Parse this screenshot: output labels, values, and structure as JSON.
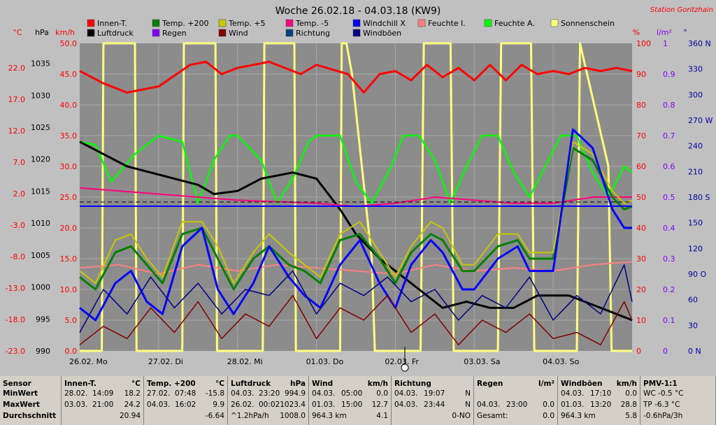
{
  "title": "Woche 26.02.18 - 04.03.18 (KW9)",
  "station": "Station Goritzhain",
  "axis_units": {
    "celsius": "°C",
    "hpa": "hPa",
    "kmh": "km/h",
    "percent": "%",
    "lm2": "l/m²",
    "deg": "°"
  },
  "colors": {
    "plot_bg": "#8c8c8c",
    "grid": "#a8a8a8",
    "red_axis": "#ff0000",
    "purple_axis": "#8000ff",
    "blue_axis": "#0000a0"
  },
  "legend": [
    {
      "label": "Innen-T.",
      "color": "#ff0000"
    },
    {
      "label": "Temp. +200",
      "color": "#008000"
    },
    {
      "label": "Temp. +5",
      "color": "#c8c800"
    },
    {
      "label": "Temp. -5",
      "color": "#ff0080"
    },
    {
      "label": "Windchill X",
      "color": "#0000ff"
    },
    {
      "label": "Feuchte I.",
      "color": "#ff8080"
    },
    {
      "label": "Feuchte A.",
      "color": "#00ff00"
    },
    {
      "label": "Sonnenschein",
      "color": "#ffff80"
    },
    {
      "label": "Luftdruck",
      "color": "#000000"
    },
    {
      "label": "Regen",
      "color": "#8000ff"
    },
    {
      "label": "Wind",
      "color": "#800000"
    },
    {
      "label": "Richtung",
      "color": "#004080"
    },
    {
      "label": "Windböen",
      "color": "#000080"
    }
  ],
  "chart_data": {
    "type": "line",
    "title": "Woche 26.02.18 - 04.03.18 (KW9)",
    "x_ticks": [
      "26.02. Mo",
      "27.02. Di",
      "28.02. Mi",
      "01.03. Do",
      "02.03. Fr",
      "03.03. Sa",
      "04.03. So"
    ],
    "axes": {
      "celsius": {
        "ticks": [
          "22.0",
          "17.0",
          "12.0",
          "7.0",
          "2.0",
          "-3.0",
          "-8.0",
          "-13.0",
          "-18.0",
          "-23.0"
        ],
        "range": [
          -23,
          27
        ]
      },
      "hpa": {
        "ticks": [
          "1035",
          "1030",
          "1025",
          "1020",
          "1015",
          "1010",
          "1005",
          "1000",
          "995",
          "990"
        ],
        "range": [
          990,
          1040
        ]
      },
      "kmh": {
        "ticks": [
          "50.0",
          "45.0",
          "40.0",
          "35.0",
          "30.0",
          "25.0",
          "20.0",
          "15.0",
          "10.0",
          "5.0",
          "0.0"
        ],
        "range": [
          0,
          50
        ]
      },
      "percent": {
        "ticks": [
          "100",
          "90",
          "80",
          "70",
          "60",
          "50",
          "40",
          "30",
          "20",
          "10",
          "0"
        ],
        "range": [
          0,
          100
        ]
      },
      "lm2": {
        "ticks": [
          "1",
          "0.9",
          "0.8",
          "0.7",
          "0.6",
          "0.5",
          "0.4",
          "0.3",
          "0.2",
          "0.1",
          "0"
        ],
        "range": [
          0,
          1
        ]
      },
      "deg": {
        "ticks": [
          "360 N",
          "330",
          "300",
          "270 W",
          "240",
          "210",
          "180 S",
          "150",
          "120",
          "90 O",
          "60",
          "30",
          "0 N"
        ],
        "range": [
          0,
          360
        ]
      }
    },
    "series": [
      {
        "name": "Sonnenschein",
        "axis": "percent",
        "x": [
          0,
          0.28,
          0.3,
          0.7,
          0.72,
          1,
          1.02,
          1.3,
          1.32,
          1.72,
          1.74,
          2,
          2.02,
          2.32,
          2.34,
          2.72,
          2.74,
          3,
          3.02,
          3.3,
          3.32,
          3.38,
          3.45,
          3.7,
          3.74,
          4,
          4.02,
          4.32,
          4.36,
          4.7,
          4.74,
          5,
          5.02,
          5.3,
          5.34,
          5.72,
          5.76,
          6,
          6.02,
          6.3,
          6.34,
          6.7,
          6.74,
          7
        ],
        "y": [
          0,
          0,
          100,
          100,
          0,
          0,
          0,
          0,
          100,
          100,
          0,
          0,
          0,
          0,
          100,
          100,
          0,
          0,
          0,
          0,
          100,
          100,
          90,
          30,
          0,
          0,
          0,
          0,
          100,
          100,
          0,
          0,
          0,
          0,
          100,
          100,
          0,
          0,
          0,
          0,
          100,
          60,
          0,
          0
        ]
      },
      {
        "name": "Feuchte A.",
        "axis": "percent",
        "x": [
          0,
          0.2,
          0.4,
          0.7,
          1.0,
          1.3,
          1.5,
          1.7,
          1.9,
          2.0,
          2.3,
          2.5,
          2.7,
          2.9,
          3.0,
          3.3,
          3.5,
          3.7,
          3.95,
          4.1,
          4.3,
          4.5,
          4.7,
          4.9,
          5.1,
          5.3,
          5.5,
          5.7,
          5.9,
          6.1,
          6.3,
          6.5,
          6.7,
          6.9,
          7.0
        ],
        "y": [
          68,
          67,
          55,
          64,
          70,
          68,
          48,
          62,
          70,
          70,
          62,
          48,
          56,
          68,
          70,
          70,
          55,
          48,
          60,
          70,
          70,
          62,
          48,
          60,
          70,
          70,
          58,
          50,
          60,
          70,
          70,
          58,
          50,
          60,
          58
        ]
      },
      {
        "name": "Innen-T.",
        "axis": "celsius",
        "x": [
          0,
          0.3,
          0.6,
          1.0,
          1.4,
          1.6,
          1.8,
          2.0,
          2.4,
          2.8,
          3.0,
          3.4,
          3.6,
          3.8,
          4.0,
          4.2,
          4.4,
          4.6,
          4.8,
          5.0,
          5.2,
          5.4,
          5.6,
          5.8,
          6.0,
          6.2,
          6.4,
          6.6,
          6.8,
          7.0
        ],
        "y": [
          22.5,
          20.5,
          19.0,
          20.0,
          23.5,
          24.0,
          22.0,
          23.0,
          24.0,
          22.0,
          23.5,
          22.0,
          19.0,
          22.0,
          22.5,
          21.0,
          23.5,
          21.5,
          23.0,
          21.0,
          23.5,
          21.0,
          23.5,
          22.0,
          22.5,
          22.0,
          23.0,
          22.5,
          23.0,
          22.5
        ]
      },
      {
        "name": "Luftdruck",
        "axis": "hpa",
        "x": [
          0,
          0.3,
          0.6,
          0.9,
          1.2,
          1.5,
          1.7,
          2.0,
          2.3,
          2.7,
          3.0,
          3.3,
          3.5,
          3.8,
          4.0,
          4.3,
          4.6,
          4.9,
          5.2,
          5.5,
          5.8,
          6.0,
          6.2,
          6.4,
          6.6,
          6.8,
          7.0
        ],
        "y": [
          1024,
          1022,
          1020,
          1019,
          1018,
          1017,
          1015.5,
          1016,
          1018,
          1019,
          1018,
          1013,
          1009,
          1005,
          1003,
          1000,
          997,
          998,
          997,
          997,
          999,
          999,
          999,
          998,
          997,
          996,
          995
        ]
      },
      {
        "name": "Temp. -5",
        "axis": "celsius",
        "x": [
          0,
          1,
          2,
          3,
          3.5,
          4,
          4.5,
          5,
          5.5,
          6,
          6.5,
          7
        ],
        "y": [
          3.5,
          2.5,
          1.5,
          1.0,
          0.5,
          1.0,
          2.0,
          1.5,
          1.0,
          1.0,
          2.0,
          2.0
        ]
      },
      {
        "name": "Feuchte I.",
        "axis": "percent",
        "x": [
          0,
          0.5,
          1,
          1.5,
          2,
          2.5,
          3,
          3.5,
          4,
          4.5,
          5,
          5.5,
          6,
          6.5,
          7
        ],
        "y": [
          27,
          28,
          25,
          28,
          26,
          28,
          27,
          26,
          25,
          28,
          26,
          27,
          26,
          28,
          29
        ]
      },
      {
        "name": "Temp. +200",
        "axis": "celsius",
        "x": [
          0,
          0.2,
          0.45,
          0.65,
          0.85,
          1.05,
          1.3,
          1.55,
          1.75,
          1.95,
          2.2,
          2.4,
          2.65,
          2.85,
          3.05,
          3.3,
          3.55,
          3.8,
          4.0,
          4.2,
          4.45,
          4.6,
          4.85,
          5.0,
          5.3,
          5.55,
          5.7,
          6.0,
          6.25,
          6.5,
          6.75,
          6.9,
          7.0
        ],
        "y": [
          -11,
          -13,
          -7,
          -6,
          -9,
          -12,
          -4,
          -3,
          -8,
          -13,
          -8,
          -6,
          -9,
          -10,
          -12,
          -5,
          -4,
          -8,
          -12,
          -7,
          -4,
          -5,
          -10,
          -10,
          -6,
          -5,
          -8,
          -8,
          10,
          8,
          2,
          0,
          0.5
        ]
      },
      {
        "name": "Temp. +5",
        "axis": "celsius",
        "x": [
          0,
          0.2,
          0.45,
          0.65,
          0.85,
          1.05,
          1.3,
          1.55,
          1.75,
          1.95,
          2.2,
          2.4,
          2.65,
          2.85,
          3.05,
          3.3,
          3.55,
          3.8,
          4.0,
          4.2,
          4.45,
          4.6,
          4.85,
          5.0,
          5.3,
          5.55,
          5.7,
          6.0,
          6.25,
          6.5,
          6.75,
          6.9,
          7.0
        ],
        "y": [
          -10,
          -12,
          -5,
          -4,
          -8,
          -11,
          -2,
          -2,
          -6,
          -12,
          -7,
          -4,
          -7,
          -9,
          -11,
          -4,
          -2,
          -7,
          -11,
          -6,
          -2,
          -3,
          -9,
          -9,
          -4,
          -4,
          -7,
          -7,
          11,
          9,
          3,
          1,
          1.5
        ]
      },
      {
        "name": "Windchill X",
        "axis": "celsius",
        "x": [
          0,
          0.2,
          0.45,
          0.65,
          0.85,
          1.05,
          1.3,
          1.55,
          1.75,
          1.95,
          2.2,
          2.4,
          2.65,
          2.85,
          3.05,
          3.3,
          3.55,
          3.8,
          4.0,
          4.2,
          4.45,
          4.6,
          4.85,
          5.0,
          5.3,
          5.55,
          5.7,
          6.0,
          6.25,
          6.5,
          6.75,
          6.9,
          7.0
        ],
        "y": [
          -16,
          -18,
          -12,
          -10,
          -15,
          -17,
          -6,
          -3,
          -13,
          -17,
          -12,
          -6,
          -11,
          -14,
          -16,
          -9,
          -5,
          -12,
          -16,
          -9,
          -5,
          -7,
          -13,
          -13,
          -8,
          -6,
          -10,
          -10,
          13,
          10,
          0,
          -3,
          -3
        ]
      },
      {
        "name": "Wind",
        "axis": "kmh",
        "x": [
          0,
          0.3,
          0.6,
          0.9,
          1.2,
          1.5,
          1.8,
          2.1,
          2.4,
          2.7,
          3.0,
          3.3,
          3.6,
          3.9,
          4.2,
          4.5,
          4.8,
          5.1,
          5.4,
          5.7,
          6.0,
          6.3,
          6.6,
          6.9,
          7.0
        ],
        "y": [
          1,
          4,
          2,
          7,
          3,
          8,
          2,
          6,
          4,
          9,
          2,
          7,
          5,
          9,
          3,
          6,
          1,
          5,
          3,
          6,
          2,
          3,
          1,
          8,
          5
        ]
      },
      {
        "name": "Windböen",
        "axis": "kmh",
        "x": [
          0,
          0.3,
          0.6,
          0.9,
          1.2,
          1.5,
          1.8,
          2.1,
          2.4,
          2.7,
          3.0,
          3.3,
          3.6,
          3.9,
          4.2,
          4.5,
          4.8,
          5.1,
          5.4,
          5.7,
          6.0,
          6.3,
          6.6,
          6.9,
          7.0
        ],
        "y": [
          3,
          10,
          6,
          12,
          7,
          11,
          6,
          10,
          9,
          13,
          6,
          11,
          9,
          12,
          8,
          10,
          5,
          9,
          7,
          12,
          5,
          9,
          6,
          14,
          8
        ]
      }
    ]
  },
  "table": [
    {
      "title": "Sensor",
      "unit": "",
      "rows": [
        [
          "MinWert",
          "",
          ""
        ],
        [
          "MaxWert",
          "",
          ""
        ],
        [
          "Durchschnitt",
          "",
          ""
        ]
      ]
    },
    {
      "title": "Innen-T.",
      "unit": "°C",
      "rows": [
        [
          "28.02.",
          "14:09",
          "18.2"
        ],
        [
          "03.03.",
          "21:00",
          "24.2"
        ],
        [
          "",
          "",
          "20.94"
        ]
      ]
    },
    {
      "title": "Temp. +200",
      "unit": "°C",
      "rows": [
        [
          "27.02.",
          "07:48",
          "-15.8"
        ],
        [
          "04.03.",
          "16:02",
          "9.9"
        ],
        [
          "",
          "",
          "-6.64"
        ]
      ]
    },
    {
      "title": "Luftdruck",
      "unit": "hPa",
      "rows": [
        [
          "04.03.",
          "23:20",
          "994.9"
        ],
        [
          "26.02.",
          "00:02",
          "1023.4"
        ],
        [
          "^1.2hPa/h",
          "",
          "1008.0"
        ]
      ]
    },
    {
      "title": "Wind",
      "unit": "km/h",
      "rows": [
        [
          "04.03.",
          "05:00",
          "0.0"
        ],
        [
          "01.03.",
          "15:00",
          "12.7"
        ],
        [
          "964.3 km",
          "",
          "4.1"
        ]
      ]
    },
    {
      "title": "Richtung",
      "unit": "",
      "rows": [
        [
          "04.03.",
          "19:07",
          "N"
        ],
        [
          "04.03.",
          "23:44",
          "N"
        ],
        [
          "",
          "",
          "0-NO"
        ]
      ]
    },
    {
      "title": "Regen",
      "unit": "l/m²",
      "rows": [
        [
          "",
          "",
          ""
        ],
        [
          "04.03.",
          "23:00",
          "0.0"
        ],
        [
          "Gesamt:",
          "",
          "0.0"
        ]
      ]
    },
    {
      "title": "Windböen",
      "unit": "km/h",
      "rows": [
        [
          "04.03.",
          "17:10",
          "0.0"
        ],
        [
          "01.03.",
          "13:20",
          "28.8"
        ],
        [
          "964.3 km",
          "",
          "5.8"
        ]
      ]
    },
    {
      "title": "PMV-1:1",
      "unit": "",
      "rows": [
        [
          "WC -0.5 °C",
          "",
          ""
        ],
        [
          "TP -6.3 °C",
          "",
          ""
        ],
        [
          "-0.6hPa/3h",
          "",
          ""
        ]
      ]
    }
  ]
}
